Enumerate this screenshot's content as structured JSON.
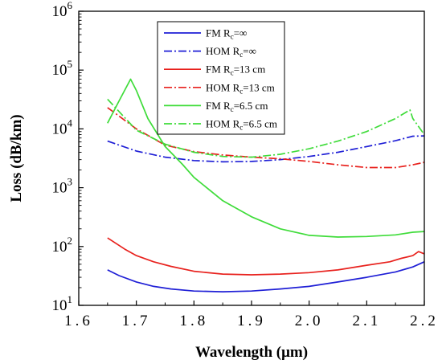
{
  "chart_data": {
    "type": "line",
    "xlabel": "Wavelength (μm)",
    "ylabel": "Loss (dB/km)",
    "xlim": [
      1.6,
      2.2
    ],
    "ylim": [
      10,
      1000000
    ],
    "yscale": "log",
    "x_ticks": [
      1.6,
      1.7,
      1.8,
      1.9,
      2.0,
      2.1,
      2.2
    ],
    "x_tick_labels": [
      "1.6",
      "1.7",
      "1.8",
      "1.9",
      "2.0",
      "2.1",
      "2.2"
    ],
    "y_ticks": [
      10,
      100,
      1000,
      10000,
      100000,
      1000000
    ],
    "y_tick_labels": [
      {
        "base": "10",
        "exp": "1"
      },
      {
        "base": "10",
        "exp": "2"
      },
      {
        "base": "10",
        "exp": "3"
      },
      {
        "base": "10",
        "exp": "4"
      },
      {
        "base": "10",
        "exp": "5"
      },
      {
        "base": "10",
        "exp": "6"
      }
    ],
    "grid": false,
    "legend_position": "top-center",
    "series": [
      {
        "label": {
          "mode": "FM",
          "r": "R",
          "sub": "c",
          "val": "=∞"
        },
        "color": "#1f1fd6",
        "dash": "solid",
        "x": [
          1.65,
          1.67,
          1.7,
          1.73,
          1.76,
          1.8,
          1.85,
          1.9,
          1.95,
          2.0,
          2.05,
          2.1,
          2.15,
          2.18,
          2.2
        ],
        "y": [
          40,
          32,
          25,
          21,
          19,
          17.5,
          17,
          17.5,
          19,
          21,
          25,
          30,
          37,
          45,
          55
        ]
      },
      {
        "label": {
          "mode": "HOM",
          "r": "R",
          "sub": "c",
          "val": "=∞"
        },
        "color": "#1f1fd6",
        "dash": "dashdot",
        "x": [
          1.65,
          1.7,
          1.75,
          1.8,
          1.85,
          1.9,
          1.95,
          2.0,
          2.05,
          2.1,
          2.15,
          2.18,
          2.2
        ],
        "y": [
          6200,
          4200,
          3300,
          2900,
          2750,
          2800,
          3000,
          3400,
          4000,
          5000,
          6300,
          7500,
          7600
        ]
      },
      {
        "label": {
          "mode": "FM",
          "r": "R",
          "sub": "c",
          "val": "=13 cm"
        },
        "color": "#e8221e",
        "dash": "solid",
        "x": [
          1.65,
          1.68,
          1.7,
          1.73,
          1.76,
          1.8,
          1.85,
          1.9,
          1.95,
          2.0,
          2.05,
          2.1,
          2.14,
          2.16,
          2.18,
          2.19,
          2.2
        ],
        "y": [
          140,
          90,
          70,
          55,
          46,
          38,
          34,
          33,
          34,
          36,
          40,
          48,
          55,
          63,
          70,
          82,
          75
        ]
      },
      {
        "label": {
          "mode": "HOM",
          "r": "R",
          "sub": "c",
          "val": "=13 cm"
        },
        "color": "#e8221e",
        "dash": "dashdot",
        "x": [
          1.65,
          1.7,
          1.75,
          1.8,
          1.85,
          1.9,
          1.95,
          2.0,
          2.05,
          2.1,
          2.15,
          2.18,
          2.2
        ],
        "y": [
          23000,
          10000,
          5300,
          4100,
          3600,
          3300,
          3100,
          2800,
          2450,
          2200,
          2200,
          2450,
          2700
        ]
      },
      {
        "label": {
          "mode": "FM",
          "r": "R",
          "sub": "c",
          "val": "=6.5 cm"
        },
        "color": "#3fdc3a",
        "dash": "solid",
        "x": [
          1.65,
          1.67,
          1.69,
          1.7,
          1.72,
          1.75,
          1.78,
          1.8,
          1.85,
          1.9,
          1.95,
          2.0,
          2.05,
          2.1,
          2.15,
          2.18,
          2.2
        ],
        "y": [
          12500,
          30000,
          70000,
          45000,
          15000,
          5000,
          2500,
          1500,
          600,
          320,
          200,
          155,
          145,
          148,
          158,
          175,
          180
        ]
      },
      {
        "label": {
          "mode": "HOM",
          "r": "R",
          "sub": "c",
          "val": "=6.5 cm"
        },
        "color": "#3fdc3a",
        "dash": "dashdot",
        "x": [
          1.65,
          1.7,
          1.75,
          1.8,
          1.85,
          1.9,
          1.95,
          2.0,
          2.05,
          2.1,
          2.15,
          2.175,
          2.18,
          2.2
        ],
        "y": [
          32000,
          9500,
          5500,
          4000,
          3400,
          3300,
          3700,
          4600,
          6200,
          9000,
          15000,
          21000,
          15000,
          8000
        ]
      }
    ]
  }
}
